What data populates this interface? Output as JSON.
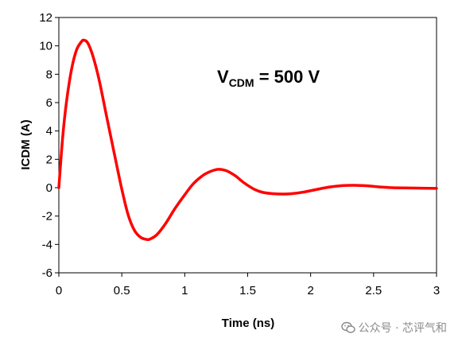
{
  "chart_data": {
    "type": "line",
    "xlabel": "Time (ns)",
    "ylabel": "ICDM (A)",
    "xlim": [
      0,
      3
    ],
    "ylim": [
      -6,
      12
    ],
    "xticks": [
      0,
      0.5,
      1,
      1.5,
      2,
      2.5,
      3
    ],
    "yticks": [
      -6,
      -4,
      -2,
      0,
      2,
      4,
      6,
      8,
      10,
      12
    ],
    "xtick_labels": [
      "0",
      "0.5",
      "1",
      "1.5",
      "2",
      "2.5",
      "3"
    ],
    "ytick_labels": [
      "-6",
      "-4",
      "-2",
      "0",
      "2",
      "4",
      "6",
      "8",
      "10",
      "12"
    ],
    "grid": false,
    "series": [
      {
        "color": "#ff0000",
        "x": [
          0,
          0.03,
          0.06,
          0.1,
          0.14,
          0.18,
          0.2,
          0.23,
          0.27,
          0.32,
          0.38,
          0.45,
          0.5,
          0.55,
          0.6,
          0.65,
          0.7,
          0.73,
          0.78,
          0.85,
          0.92,
          1.0,
          1.07,
          1.15,
          1.22,
          1.27,
          1.33,
          1.4,
          1.47,
          1.55,
          1.62,
          1.7,
          1.78,
          1.85,
          1.95,
          2.05,
          2.15,
          2.25,
          2.35,
          2.45,
          2.55,
          2.65,
          2.8,
          3.0
        ],
        "y": [
          0,
          3.5,
          6.0,
          8.3,
          9.7,
          10.3,
          10.4,
          10.2,
          9.3,
          7.6,
          5.0,
          2.0,
          -0.1,
          -1.9,
          -3.0,
          -3.5,
          -3.65,
          -3.6,
          -3.3,
          -2.5,
          -1.5,
          -0.5,
          0.3,
          0.9,
          1.2,
          1.3,
          1.2,
          0.85,
          0.35,
          -0.1,
          -0.33,
          -0.42,
          -0.45,
          -0.42,
          -0.3,
          -0.12,
          0.05,
          0.15,
          0.17,
          0.13,
          0.05,
          0,
          -0.02,
          -0.05
        ]
      }
    ]
  },
  "annotation": {
    "v_main": "V",
    "v_sub": "CDM",
    "v_rest": " = 500 V"
  },
  "watermark": {
    "icon": "wechat-icon",
    "text": "公众号 · 芯评气和"
  }
}
